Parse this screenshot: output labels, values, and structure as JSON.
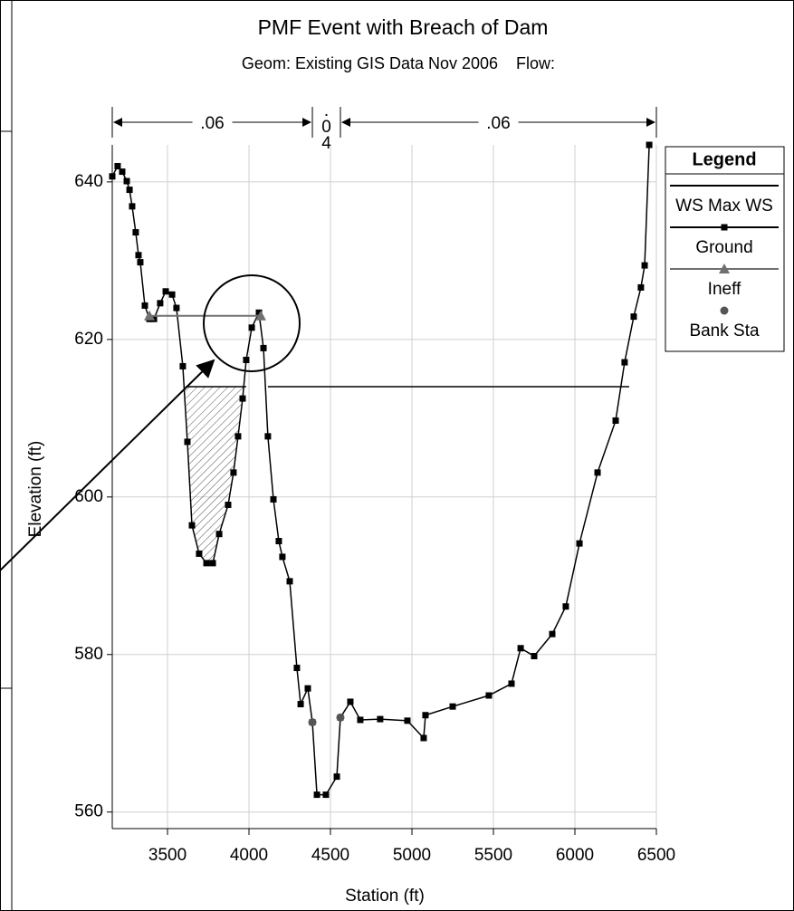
{
  "chart_data": {
    "type": "line",
    "title": "PMF Event with Breach of Dam",
    "subtitle": "Geom: Existing GIS Data Nov 2006    Flow:",
    "x_label": "Station (ft)",
    "y_label": "Elevation (ft)",
    "xlim": [
      3161,
      6500
    ],
    "ylim": [
      557.9,
      644.7
    ],
    "xticks": [
      3500,
      4000,
      4500,
      5000,
      5500,
      6000,
      6500
    ],
    "yticks": [
      560,
      580,
      600,
      620,
      640
    ],
    "grid": true,
    "legend_title": "Legend",
    "legend_position": "right",
    "manning_n": [
      ".06",
      ".04",
      ".06"
    ],
    "series": [
      {
        "name": "WS Max WS",
        "color": "#000000",
        "marker": "none",
        "x": [
          3611,
          3983,
          4050,
          4116,
          6333
        ],
        "values": [
          614,
          614,
          null,
          614,
          614
        ]
      },
      {
        "name": "Ground",
        "color": "#000000",
        "marker": "square",
        "x": [
          3161,
          3194,
          3222,
          3250,
          3267,
          3283,
          3305,
          3322,
          3333,
          3361,
          3389,
          3417,
          3455,
          3489,
          3528,
          3555,
          3594,
          3622,
          3650,
          3694,
          3739,
          3778,
          3817,
          3872,
          3905,
          3933,
          3961,
          3983,
          4017,
          4061,
          4089,
          4116,
          4150,
          4183,
          4205,
          4250,
          4294,
          4317,
          4361,
          4389,
          4417,
          4472,
          4539,
          4561,
          4622,
          4683,
          4805,
          4972,
          5072,
          5083,
          5250,
          5472,
          5611,
          5667,
          5750,
          5861,
          5944,
          6028,
          6139,
          6250,
          6305,
          6361,
          6405,
          6428,
          6456
        ],
        "values": [
          640.7,
          642.0,
          641.3,
          640.1,
          639.0,
          636.9,
          633.6,
          630.7,
          629.8,
          624.3,
          622.6,
          622.6,
          624.6,
          626.1,
          625.7,
          624.0,
          616.6,
          607.0,
          596.4,
          592.8,
          591.6,
          591.6,
          595.3,
          599.0,
          603.1,
          607.7,
          612.5,
          617.4,
          621.5,
          623.4,
          618.9,
          607.7,
          599.7,
          594.4,
          592.4,
          589.3,
          578.3,
          573.7,
          575.7,
          571.4,
          562.2,
          562.2,
          564.5,
          572.0,
          574.0,
          571.7,
          571.8,
          571.6,
          569.4,
          572.3,
          573.4,
          574.8,
          576.3,
          580.8,
          579.8,
          582.6,
          586.1,
          594.1,
          603.1,
          609.7,
          617.1,
          622.9,
          626.6,
          629.4,
          644.7
        ]
      },
      {
        "name": "Ineff",
        "color": "#707070",
        "marker": "triangle",
        "x": [
          3389,
          4072
        ],
        "values": [
          623.0,
          623.0
        ]
      },
      {
        "name": "Bank Sta",
        "color": "#555555",
        "marker": "circle",
        "x": [
          4389,
          4561
        ],
        "values": [
          571.4,
          572.0
        ]
      }
    ]
  }
}
